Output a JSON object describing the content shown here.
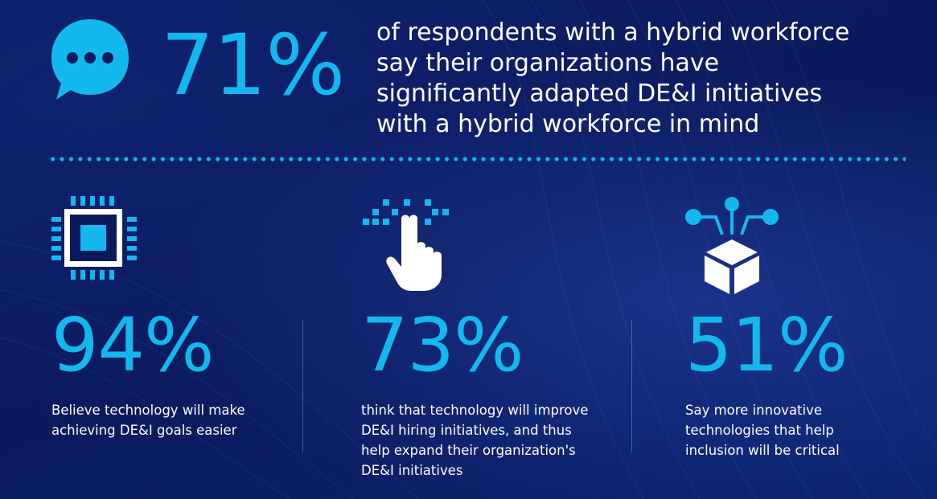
{
  "colors": {
    "background": "#0a1a5c",
    "accent": "#12b8ee",
    "text": "#ffffff",
    "icon_light": "#e8eef8"
  },
  "top": {
    "icon": "chat-bubble-icon",
    "percent": "71%",
    "text": "of respondents with a hybrid workforce say their organizations have significantly adapted DE&I initiatives with a hybrid workforce in mind"
  },
  "stats": [
    {
      "icon": "processor-chip-icon",
      "percent": "94%",
      "text": "Believe technology will make achieving DE&I goals easier"
    },
    {
      "icon": "pointing-hand-icon",
      "percent": "73%",
      "text": "think that technology will improve DE&I hiring initiatives, and thus help expand their organization's DE&I initiatives"
    },
    {
      "icon": "network-cube-icon",
      "percent": "51%",
      "text": "Say more innovative technologies that help inclusion will be critical"
    }
  ]
}
